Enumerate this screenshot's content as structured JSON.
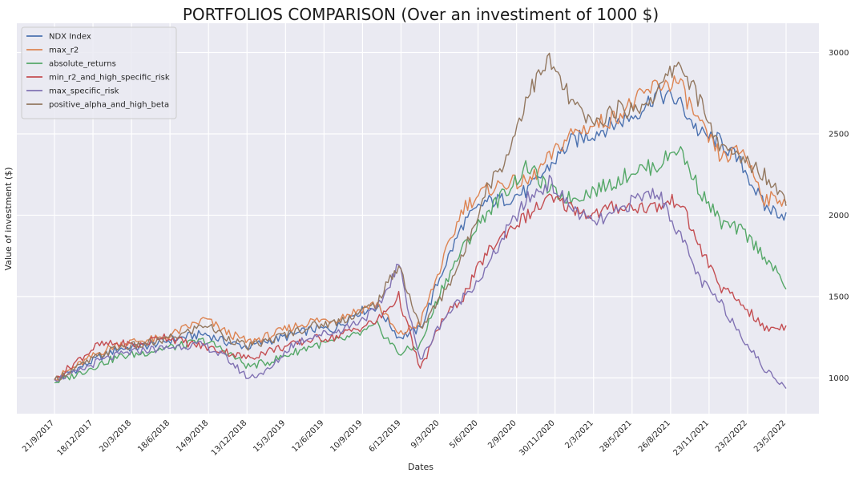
{
  "chart_data": {
    "type": "line",
    "title": "PORTFOLIOS COMPARISON (Over an investiment of 1000 $)",
    "xlabel": "Dates",
    "ylabel": "Value of investment ($)",
    "x_ticks": [
      "21/9/2017",
      "18/12/2017",
      "20/3/2018",
      "18/6/2018",
      "14/9/2018",
      "13/12/2018",
      "15/3/2019",
      "12/6/2019",
      "10/9/2019",
      "6/12/2019",
      "9/3/2020",
      "5/6/2020",
      "2/9/2020",
      "30/11/2020",
      "2/3/2021",
      "28/5/2021",
      "26/8/2021",
      "23/11/2021",
      "23/2/2022",
      "23/5/2022"
    ],
    "y_ticks": [
      1000,
      1500,
      2000,
      2500,
      3000
    ],
    "ylim": [
      780,
      3180
    ],
    "y_axis_position": "right",
    "grid": true,
    "legend_position": "top-left",
    "background": "#eaeaf2",
    "series": [
      {
        "name": "NDX Index",
        "color": "#4c72b0",
        "values": [
          990,
          1050,
          1120,
          1180,
          1190,
          1220,
          1250,
          1270,
          1220,
          1190,
          1230,
          1260,
          1300,
          1300,
          1400,
          1440,
          1250,
          1300,
          1650,
          1950,
          2080,
          2100,
          2150,
          2300,
          2450,
          2500,
          2560,
          2620,
          2750,
          2700,
          2500,
          2450,
          2300,
          2050,
          2000
        ]
      },
      {
        "name": "max_r2",
        "color": "#dd8452",
        "values": [
          995,
          1070,
          1150,
          1210,
          1230,
          1240,
          1300,
          1360,
          1280,
          1220,
          1260,
          1310,
          1350,
          1360,
          1410,
          1460,
          1260,
          1340,
          1700,
          2050,
          2150,
          2200,
          2200,
          2350,
          2500,
          2550,
          2600,
          2700,
          2800,
          2820,
          2550,
          2350,
          2400,
          2100,
          2100
        ]
      },
      {
        "name": "absolute_returns",
        "color": "#55a868",
        "values": [
          970,
          1020,
          1080,
          1130,
          1150,
          1180,
          1200,
          1230,
          1160,
          1070,
          1100,
          1150,
          1200,
          1220,
          1260,
          1320,
          1150,
          1200,
          1550,
          1800,
          2000,
          2150,
          2300,
          2150,
          2100,
          2150,
          2200,
          2280,
          2300,
          2420,
          2150,
          1950,
          1900,
          1750,
          1560
        ]
      },
      {
        "name": "min_r2_and_high_specific_risk",
        "color": "#c44e52",
        "values": [
          985,
          1100,
          1200,
          1210,
          1200,
          1260,
          1220,
          1190,
          1160,
          1120,
          1170,
          1200,
          1240,
          1250,
          1300,
          1350,
          1500,
          1050,
          1350,
          1500,
          1750,
          1900,
          2000,
          2100,
          2050,
          2000,
          2050,
          2050,
          2050,
          2100,
          1800,
          1550,
          1450,
          1300,
          1320
        ]
      },
      {
        "name": "max_specific_risk",
        "color": "#8172b3",
        "values": [
          990,
          1030,
          1100,
          1140,
          1170,
          1180,
          1200,
          1200,
          1120,
          1000,
          1050,
          1200,
          1260,
          1280,
          1340,
          1420,
          1700,
          1100,
          1350,
          1500,
          1650,
          1900,
          2100,
          2200,
          2050,
          1950,
          2000,
          2100,
          2150,
          1900,
          1600,
          1450,
          1250,
          1050,
          950
        ]
      },
      {
        "name": "positive_alpha_and_high_beta",
        "color": "#937860",
        "values": [
          990,
          1060,
          1130,
          1190,
          1200,
          1230,
          1270,
          1330,
          1250,
          1190,
          1230,
          1280,
          1320,
          1340,
          1390,
          1460,
          1700,
          1300,
          1500,
          1750,
          2150,
          2350,
          2750,
          2950,
          2700,
          2550,
          2650,
          2650,
          2750,
          2950,
          2700,
          2400,
          2350,
          2250,
          2100
        ]
      }
    ]
  }
}
